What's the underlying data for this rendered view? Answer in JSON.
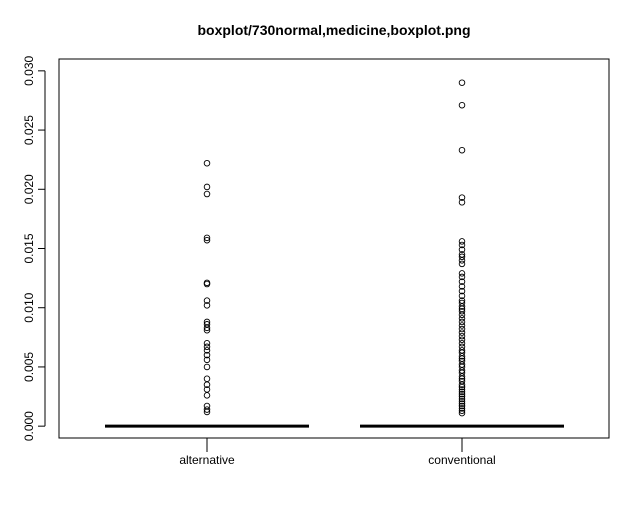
{
  "chart_data": {
    "type": "boxplot",
    "title": "boxplot/730normal,medicine,boxplot.png",
    "xlabel": "",
    "ylabel": "",
    "ylim": [
      -0.001,
      0.031
    ],
    "y_ticks": [
      "0.000",
      "0.005",
      "0.010",
      "0.015",
      "0.020",
      "0.025",
      "0.030"
    ],
    "grid": false,
    "categories": [
      "alternative",
      "conventional"
    ],
    "boxes": [
      {
        "category": "alternative",
        "min": 0.0,
        "q1": 0.0,
        "median": 0.0,
        "q3": 0.0,
        "max": 0.0,
        "outliers": [
          0.0222,
          0.0202,
          0.0196,
          0.0159,
          0.0157,
          0.0121,
          0.012,
          0.0106,
          0.0102,
          0.0088,
          0.0086,
          0.0083,
          0.0081,
          0.007,
          0.0067,
          0.0064,
          0.006,
          0.0056,
          0.005,
          0.004,
          0.0035,
          0.0031,
          0.0026,
          0.0017,
          0.0014,
          0.0012
        ]
      },
      {
        "category": "conventional",
        "min": 0.0,
        "q1": 0.0,
        "median": 0.0,
        "q3": 0.0,
        "max": 0.0,
        "outliers": [
          0.029,
          0.0271,
          0.0233,
          0.0193,
          0.0189,
          0.0156,
          0.0153,
          0.0149,
          0.0145,
          0.0143,
          0.014,
          0.0137,
          0.0129,
          0.0126,
          0.0122,
          0.0118,
          0.0114,
          0.011,
          0.0106,
          0.0104,
          0.0101,
          0.0099,
          0.0097,
          0.0094,
          0.0091,
          0.0088,
          0.0085,
          0.0082,
          0.0079,
          0.0076,
          0.0073,
          0.007,
          0.0067,
          0.0064,
          0.0062,
          0.0059,
          0.0057,
          0.0055,
          0.0052,
          0.005,
          0.0047,
          0.0045,
          0.0042,
          0.004,
          0.0038,
          0.0035,
          0.0033,
          0.0031,
          0.0029,
          0.0027,
          0.0025,
          0.0023,
          0.0021,
          0.0019,
          0.0017,
          0.0015,
          0.0013,
          0.0011
        ]
      }
    ]
  }
}
